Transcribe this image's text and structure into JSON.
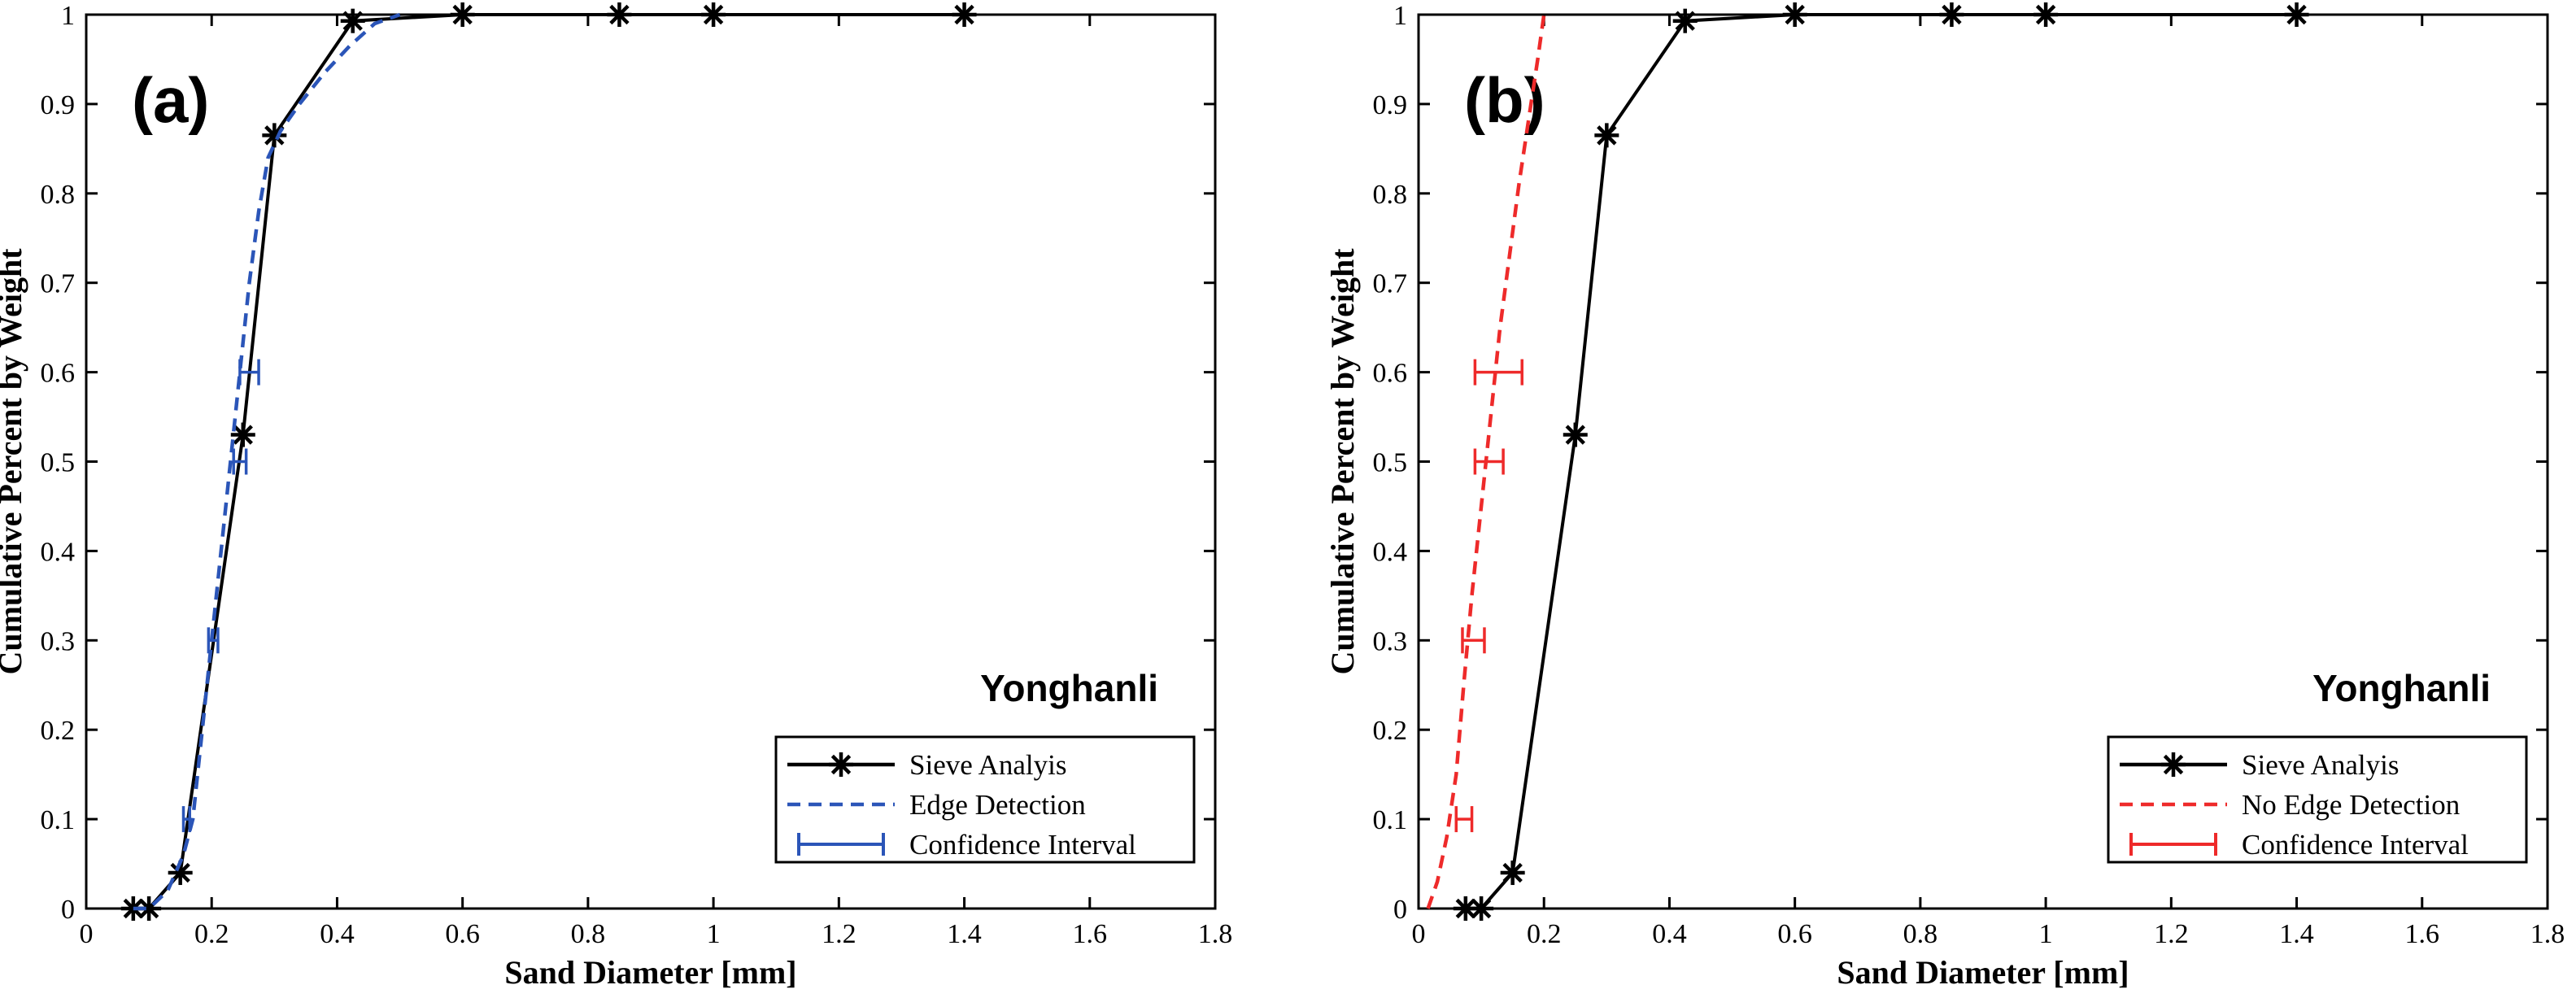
{
  "chart_data": [
    {
      "type": "line",
      "panel": "(a)",
      "annotation": "Yonghanli",
      "xlabel": "Sand Diameter [mm]",
      "ylabel": "Cumulative Percent by Weight",
      "xlim": [
        0,
        1.8
      ],
      "ylim": [
        0,
        1
      ],
      "xticks": [
        "0",
        "0.2",
        "0.4",
        "0.6",
        "0.8",
        "1",
        "1.2",
        "1.4",
        "1.6",
        "1.8"
      ],
      "yticks": [
        "0",
        "0.1",
        "0.2",
        "0.3",
        "0.4",
        "0.5",
        "0.6",
        "0.7",
        "0.8",
        "0.9",
        "1"
      ],
      "grid": false,
      "legend_position": "bottom-right",
      "series": [
        {
          "name": "Sieve Analyis",
          "style": "solid-asterisk",
          "color": "#000000",
          "x": [
            0.075,
            0.1,
            0.15,
            0.25,
            0.3,
            0.425,
            0.6,
            0.85,
            1.0,
            1.4
          ],
          "y": [
            0.0,
            0.0,
            0.04,
            0.53,
            0.865,
            0.993,
            1.0,
            1.0,
            1.0,
            1.0
          ]
        },
        {
          "name": "Edge Detection",
          "style": "dashed",
          "color": "#2b55b8",
          "x": [
            0.075,
            0.1,
            0.13,
            0.155,
            0.17,
            0.185,
            0.2,
            0.215,
            0.23,
            0.245,
            0.26,
            0.275,
            0.29,
            0.31,
            0.34,
            0.38,
            0.42,
            0.46,
            0.5
          ],
          "y": [
            0.0,
            0.0,
            0.02,
            0.06,
            0.1,
            0.2,
            0.3,
            0.4,
            0.5,
            0.6,
            0.7,
            0.78,
            0.84,
            0.87,
            0.9,
            0.935,
            0.965,
            0.99,
            1.0
          ]
        },
        {
          "name": "Confidence Interval",
          "style": "errorbar",
          "color": "#2b55b8",
          "intervals": [
            {
              "y": 0.1,
              "xmin": 0.155,
              "xmax": 0.165
            },
            {
              "y": 0.3,
              "xmin": 0.195,
              "xmax": 0.21
            },
            {
              "y": 0.5,
              "xmin": 0.235,
              "xmax": 0.255
            },
            {
              "y": 0.6,
              "xmin": 0.245,
              "xmax": 0.275
            }
          ]
        }
      ]
    },
    {
      "type": "line",
      "panel": "(b)",
      "annotation": "Yonghanli",
      "xlabel": "Sand Diameter [mm]",
      "ylabel": "Cumulative Percent by Weight",
      "xlim": [
        0,
        1.8
      ],
      "ylim": [
        0,
        1
      ],
      "xticks": [
        "0",
        "0.2",
        "0.4",
        "0.6",
        "0.8",
        "1",
        "1.2",
        "1.4",
        "1.6",
        "1.8"
      ],
      "yticks": [
        "0",
        "0.1",
        "0.2",
        "0.3",
        "0.4",
        "0.5",
        "0.6",
        "0.7",
        "0.8",
        "0.9",
        "1"
      ],
      "grid": false,
      "legend_position": "bottom-right",
      "series": [
        {
          "name": "Sieve Analyis",
          "style": "solid-asterisk",
          "color": "#000000",
          "x": [
            0.075,
            0.1,
            0.15,
            0.25,
            0.3,
            0.425,
            0.6,
            0.85,
            1.0,
            1.4
          ],
          "y": [
            0.0,
            0.0,
            0.04,
            0.53,
            0.865,
            0.993,
            1.0,
            1.0,
            1.0,
            1.0
          ]
        },
        {
          "name": "No Edge Detection",
          "style": "dashed",
          "color": "#ee2a2a",
          "x": [
            0.015,
            0.03,
            0.045,
            0.06,
            0.072,
            0.085,
            0.1,
            0.115,
            0.13,
            0.145,
            0.16,
            0.175,
            0.19,
            0.2
          ],
          "y": [
            0.0,
            0.03,
            0.08,
            0.15,
            0.25,
            0.35,
            0.45,
            0.55,
            0.65,
            0.73,
            0.81,
            0.88,
            0.95,
            1.0
          ]
        },
        {
          "name": "Confidence Interval",
          "style": "errorbar",
          "color": "#ee2a2a",
          "intervals": [
            {
              "y": 0.1,
              "xmin": 0.06,
              "xmax": 0.085
            },
            {
              "y": 0.3,
              "xmin": 0.07,
              "xmax": 0.105
            },
            {
              "y": 0.5,
              "xmin": 0.09,
              "xmax": 0.135
            },
            {
              "y": 0.6,
              "xmin": 0.09,
              "xmax": 0.165
            }
          ]
        }
      ]
    }
  ]
}
